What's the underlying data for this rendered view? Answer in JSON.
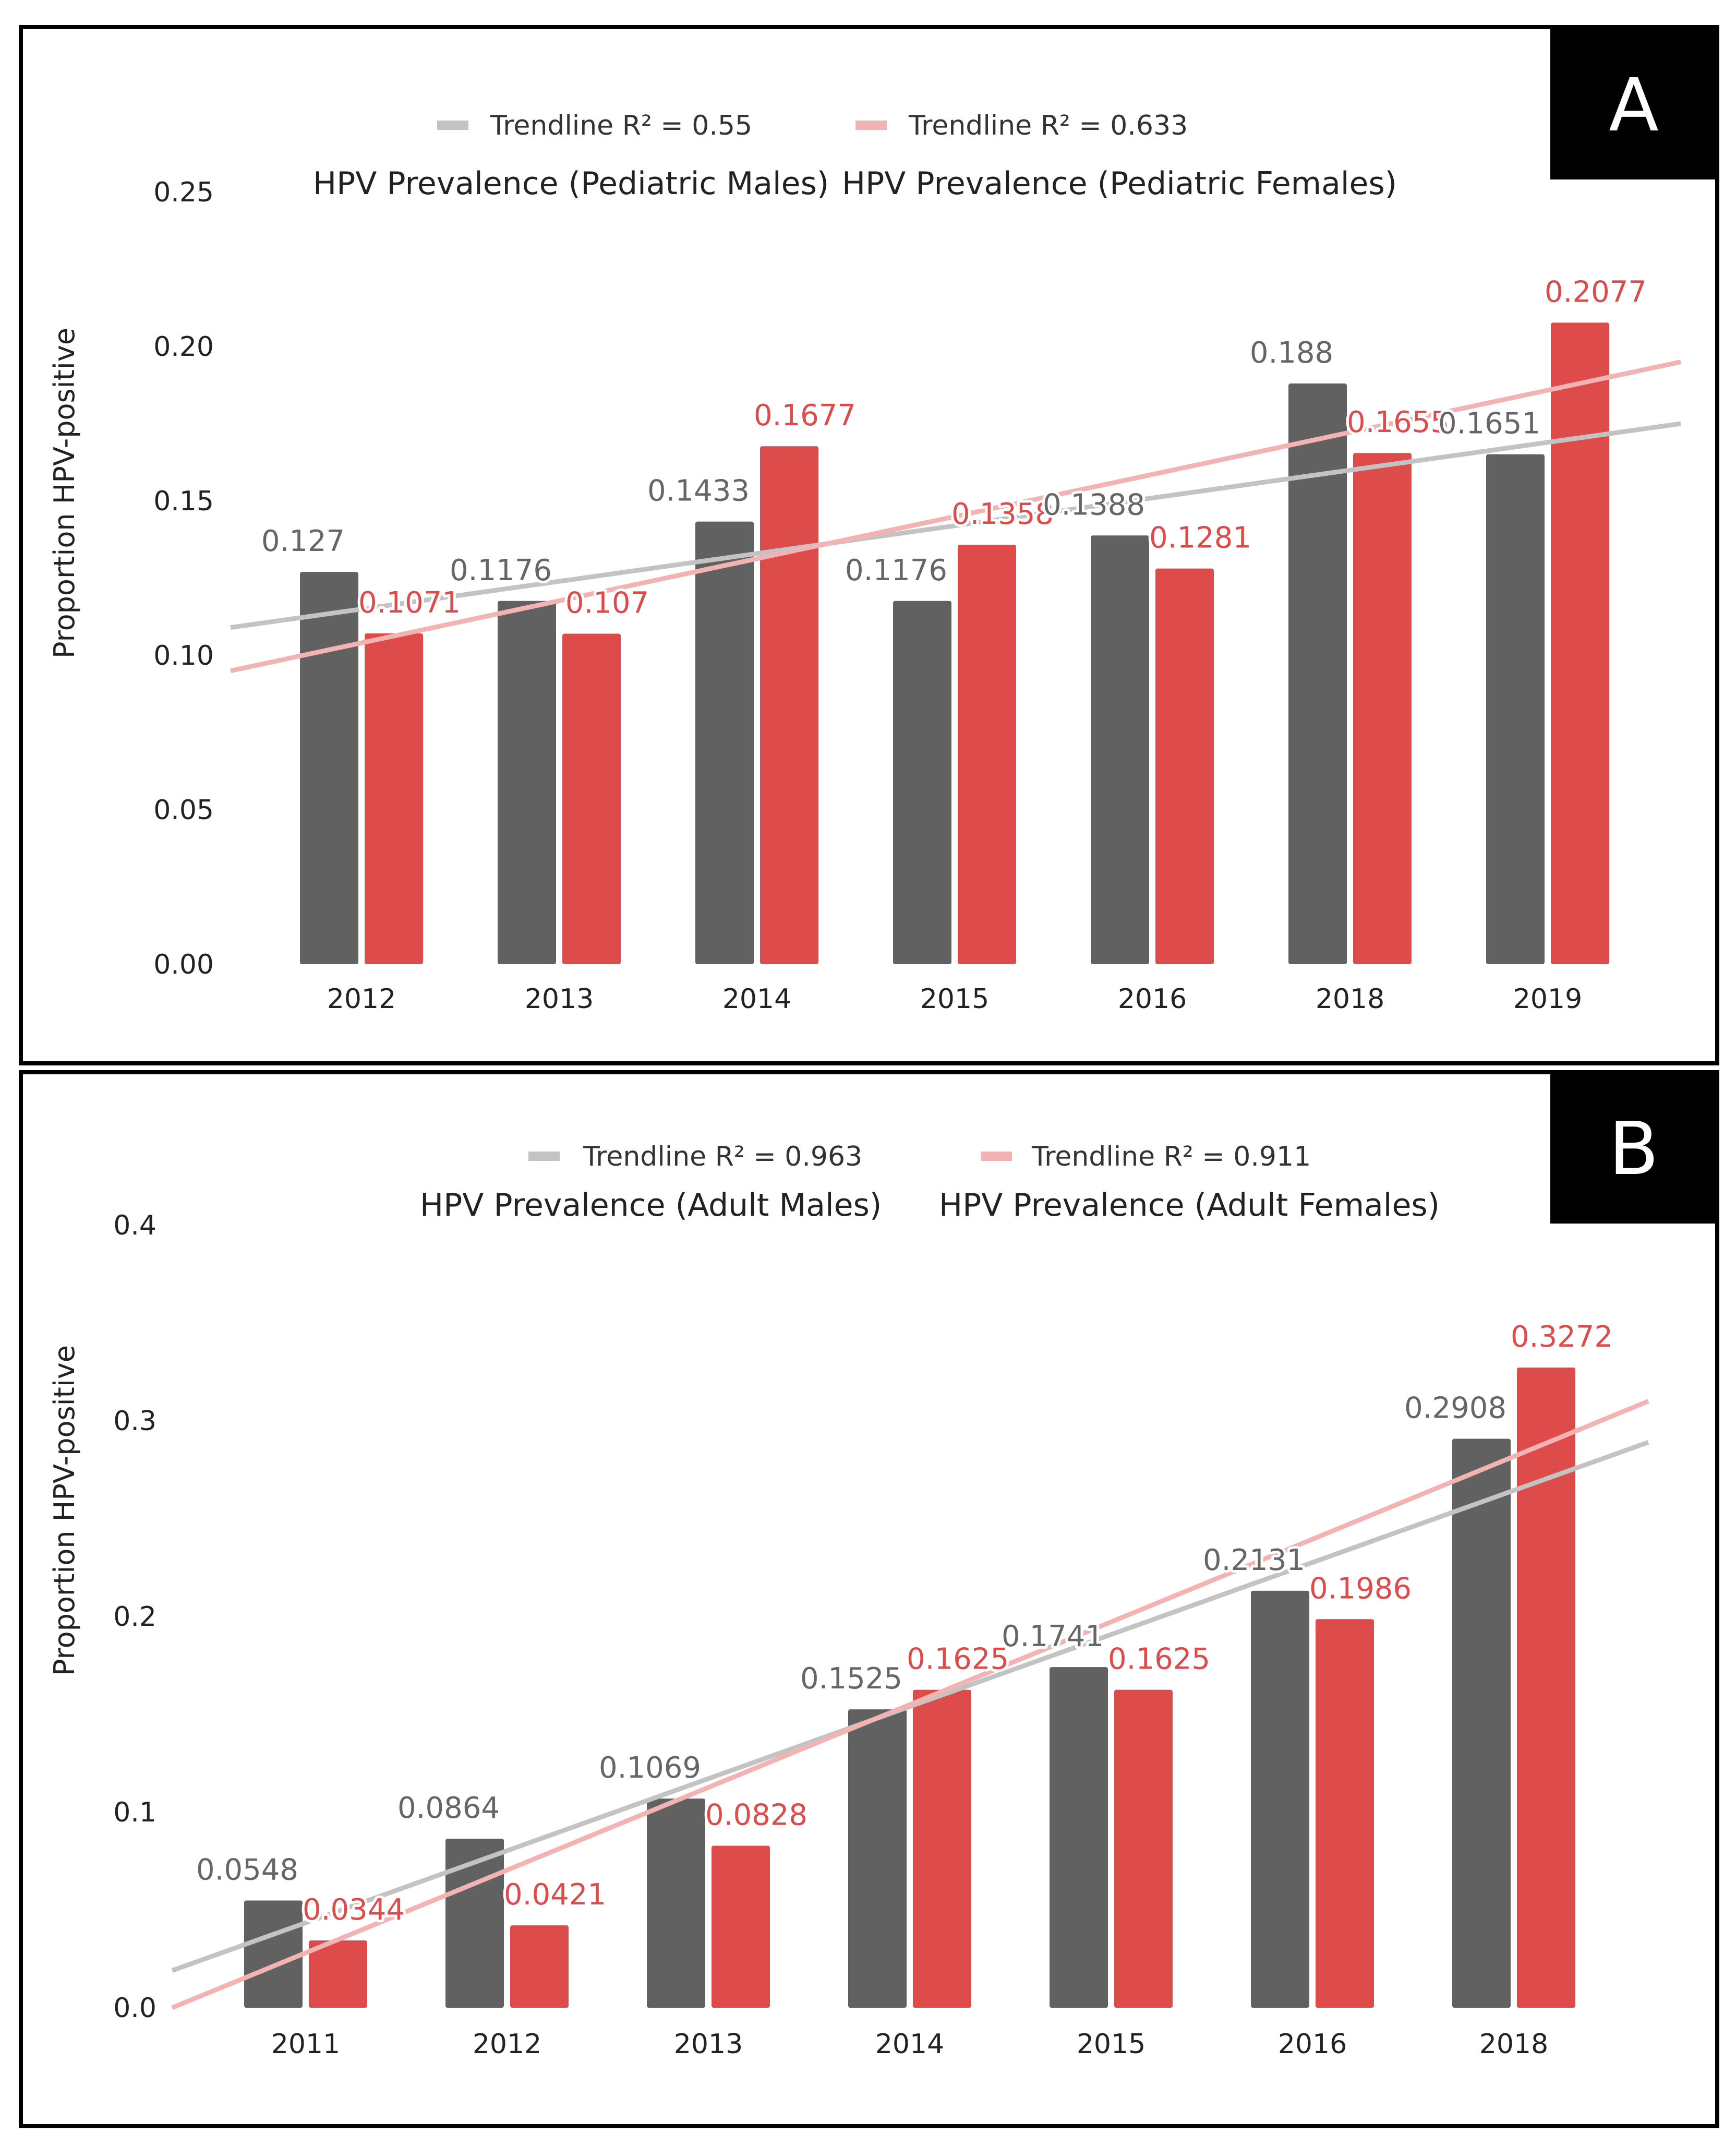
{
  "colors": {
    "male_bar": "#616161",
    "female_bar": "#dd4b4b",
    "male_trend": "#c3c3c3",
    "female_trend": "#f3b3b3",
    "male_label": "#666666",
    "female_label": "#dd4b4b"
  },
  "chart_data": [
    {
      "type": "bar",
      "panel": "A",
      "title": "",
      "xlabel": "",
      "ylabel": "Proportion HPV-positive",
      "ylim": [
        0,
        0.25
      ],
      "yticks": [
        "0.00",
        "0.05",
        "0.10",
        "0.15",
        "0.20",
        "0.25"
      ],
      "categories": [
        "2012",
        "2013",
        "2014",
        "2015",
        "2016",
        "2018",
        "2019"
      ],
      "series": [
        {
          "name": "HPV Prevalence (Pediatric Males)",
          "values": [
            0.127,
            0.1176,
            0.1433,
            0.1176,
            0.1388,
            0.188,
            0.1651
          ],
          "labels": [
            "0.127",
            "0.1176",
            "0.1433",
            "0.1176",
            "0.1388",
            "0.188",
            "0.1651"
          ]
        },
        {
          "name": "HPV Prevalence (Pediatric Females)",
          "values": [
            0.1071,
            0.107,
            0.1677,
            0.1358,
            0.1281,
            0.1655,
            0.2077
          ],
          "labels": [
            "0.1071",
            "0.107",
            "0.1677",
            "0.1358",
            "0.1281",
            "0.1655",
            "0.2077"
          ]
        }
      ],
      "trendlines": [
        {
          "name": "Trendline R² = 0.55",
          "y_start": 0.109,
          "y_end": 0.175
        },
        {
          "name": "Trendline  R² = 0.633",
          "y_start": 0.095,
          "y_end": 0.195
        }
      ]
    },
    {
      "type": "bar",
      "panel": "B",
      "title": "",
      "xlabel": "",
      "ylabel": "Proportion HPV-positive",
      "ylim": [
        0,
        0.4
      ],
      "yticks": [
        "0.0",
        "0.1",
        "0.2",
        "0.3",
        "0.4"
      ],
      "categories": [
        "2011",
        "2012",
        "2013",
        "2014",
        "2015",
        "2016",
        "2018"
      ],
      "series": [
        {
          "name": "HPV Prevalence (Adult Males)",
          "values": [
            0.0548,
            0.0864,
            0.1069,
            0.1525,
            0.1741,
            0.2131,
            0.2908
          ],
          "labels": [
            "0.0548",
            "0.0864",
            "0.1069",
            "0.1525",
            "0.1741",
            "0.2131",
            "0.2908"
          ]
        },
        {
          "name": "HPV Prevalence (Adult Females)",
          "values": [
            0.0344,
            0.0421,
            0.0828,
            0.1625,
            0.1625,
            0.1986,
            0.3272
          ],
          "labels": [
            "0.0344",
            "0.0421",
            "0.0828",
            "0.1625",
            "0.1625",
            "0.1986",
            "0.3272"
          ]
        }
      ],
      "trendlines": [
        {
          "name": "Trendline  R² = 0.963",
          "y_start": 0.019,
          "y_end": 0.289
        },
        {
          "name": "Trendline R² = 0.911",
          "y_start": 0.0,
          "y_end": 0.31
        }
      ]
    }
  ]
}
